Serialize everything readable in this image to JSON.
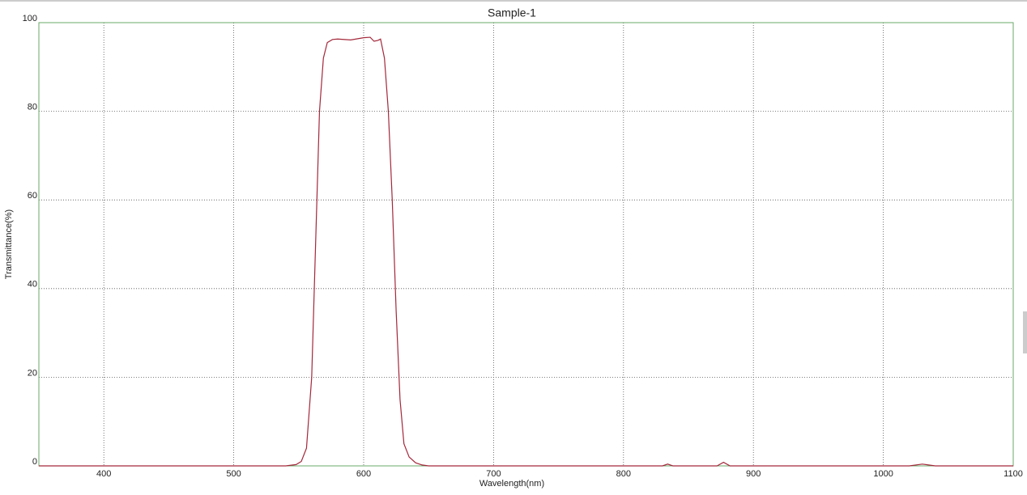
{
  "chart_data": {
    "type": "line",
    "title": "Sample-1",
    "x_label": "Wavelength(nm)",
    "y_label": "Transmittance(%)",
    "x": [
      350,
      540,
      548,
      552,
      556,
      560,
      563,
      566,
      569,
      572,
      576,
      580,
      590,
      600,
      605,
      608,
      611,
      613,
      616,
      619,
      622,
      625,
      628,
      631,
      635,
      640,
      645,
      650,
      830,
      834,
      838,
      872,
      877,
      882,
      1020,
      1030,
      1040,
      1100
    ],
    "values": [
      0,
      0,
      0.3,
      1,
      4,
      20,
      50,
      80,
      92,
      95.5,
      96.2,
      96.3,
      96.1,
      96.6,
      96.7,
      95.8,
      96.0,
      96.3,
      92,
      80,
      60,
      35,
      15,
      5,
      2,
      0.7,
      0.2,
      0,
      0,
      0.4,
      0,
      0,
      0.8,
      0,
      0,
      0.4,
      0,
      0
    ],
    "color": "#a3283a",
    "xlim": [
      350,
      1100
    ],
    "xticks": [
      400,
      500,
      600,
      700,
      800,
      900,
      1000,
      1100
    ],
    "ylim": [
      0,
      100
    ],
    "yticks": [
      0,
      20,
      40,
      60,
      80,
      100
    ],
    "grid": true
  }
}
